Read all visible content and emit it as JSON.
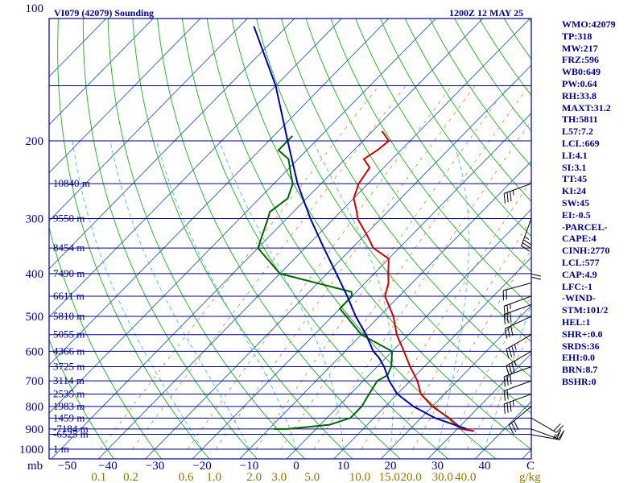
{
  "header": {
    "station_title": "VI079 (42079) Sounding",
    "time_title": "1200Z 12 MAY 25"
  },
  "colors": {
    "frame": "#000080",
    "isobar": "#000080",
    "isotherm": "#2a5db0",
    "dry_adiabat": "#22aa22",
    "moist_adiabat": "#5ab4e6",
    "mixing_ratio": "#b8a060",
    "temperature": "#cc0000",
    "dewpoint": "#006400",
    "parcel": "#0000aa",
    "wind_barb": "#000000",
    "unit_label": "#8B7500"
  },
  "chart_data": {
    "type": "line",
    "chart_kind": "skew-T log-P sounding",
    "grid": true,
    "pressure_axis": {
      "unit_label": "mb",
      "scale": "log",
      "range": [
        1000,
        100
      ],
      "ticks": [
        100,
        200,
        300,
        400,
        500,
        600,
        700,
        800,
        900,
        1000
      ],
      "extra_isobars": [
        150,
        250,
        350,
        450,
        550,
        650,
        750,
        850,
        925
      ]
    },
    "temperature_axis": {
      "unit_label": "C",
      "range": [
        -50,
        50
      ],
      "ticks": [
        -50,
        -40,
        -30,
        -20,
        -10,
        0,
        10,
        20,
        30,
        40
      ]
    },
    "mixing_ratio_axis": {
      "unit_label": "g/kg",
      "ticks": [
        "0.1",
        "0.2",
        "0.6",
        "1.0",
        "2.0",
        "3.0",
        "5.0",
        "10.0",
        "15.0",
        "20.0",
        "30.0",
        "40.0"
      ]
    },
    "height_labels": [
      {
        "pressure": 250,
        "label": "10840 m"
      },
      {
        "pressure": 300,
        "label": "9550 m"
      },
      {
        "pressure": 350,
        "label": "8454 m"
      },
      {
        "pressure": 400,
        "label": "7490 m"
      },
      {
        "pressure": 450,
        "label": "6611 m"
      },
      {
        "pressure": 500,
        "label": "5810 m"
      },
      {
        "pressure": 550,
        "label": "5055 m"
      },
      {
        "pressure": 600,
        "label": "4366 m"
      },
      {
        "pressure": 650,
        "label": "3725 m"
      },
      {
        "pressure": 700,
        "label": "3114 m"
      },
      {
        "pressure": 750,
        "label": "2535 m"
      },
      {
        "pressure": 800,
        "label": "1983 m"
      },
      {
        "pressure": 850,
        "label": "1459 m"
      },
      {
        "pressure": 900,
        "label": "-7184 m"
      },
      {
        "pressure": 925,
        "label": "-6525 m"
      },
      {
        "pressure": 1000,
        "label": "1 m"
      }
    ],
    "series": [
      {
        "key": "temperature",
        "points": [
          [
            910,
            34
          ],
          [
            900,
            31
          ],
          [
            850,
            26
          ],
          [
            800,
            20
          ],
          [
            750,
            15
          ],
          [
            700,
            11.5
          ],
          [
            650,
            7
          ],
          [
            600,
            2.5
          ],
          [
            550,
            -2.5
          ],
          [
            500,
            -7
          ],
          [
            450,
            -13
          ],
          [
            420,
            -15
          ],
          [
            400,
            -17
          ],
          [
            370,
            -20
          ],
          [
            350,
            -25.5
          ],
          [
            330,
            -29
          ],
          [
            300,
            -35
          ],
          [
            290,
            -36.5
          ],
          [
            270,
            -40
          ],
          [
            250,
            -42
          ],
          [
            230,
            -43
          ],
          [
            220,
            -46
          ],
          [
            210,
            -45
          ],
          [
            200,
            -44.5
          ],
          [
            190,
            -48
          ]
        ]
      },
      {
        "key": "dewpoint",
        "points": [
          [
            900,
            -9
          ],
          [
            900,
            -6
          ],
          [
            880,
            2
          ],
          [
            850,
            5
          ],
          [
            800,
            5
          ],
          [
            750,
            4
          ],
          [
            700,
            3
          ],
          [
            680,
            4
          ],
          [
            650,
            3
          ],
          [
            600,
            0
          ],
          [
            550,
            -10
          ],
          [
            500,
            -17
          ],
          [
            480,
            -20
          ],
          [
            450,
            -20
          ],
          [
            440,
            -21
          ],
          [
            400,
            -40
          ],
          [
            350,
            -50
          ],
          [
            300,
            -54
          ],
          [
            290,
            -55
          ],
          [
            270,
            -54
          ],
          [
            250,
            -56
          ],
          [
            240,
            -58
          ],
          [
            220,
            -62
          ],
          [
            210,
            -66
          ],
          [
            195,
            -66
          ]
        ]
      },
      {
        "key": "parcel",
        "points": [
          [
            900,
            32
          ],
          [
            850,
            23
          ],
          [
            800,
            16
          ],
          [
            750,
            10
          ],
          [
            700,
            5.5
          ],
          [
            650,
            1.5
          ],
          [
            620,
            -1.5
          ],
          [
            600,
            -4
          ],
          [
            550,
            -9
          ],
          [
            500,
            -15
          ],
          [
            450,
            -21
          ],
          [
            400,
            -28
          ],
          [
            350,
            -36
          ],
          [
            300,
            -45
          ],
          [
            250,
            -55
          ],
          [
            200,
            -66
          ],
          [
            150,
            -80
          ],
          [
            110,
            -97
          ]
        ]
      }
    ],
    "wind_barbs": [
      {
        "pressure": 927,
        "direction": 100,
        "speed": 25
      },
      {
        "pressure": 900,
        "direction": 110,
        "speed": 20
      },
      {
        "pressure": 850,
        "direction": 120,
        "speed": 20
      },
      {
        "pressure": 800,
        "direction": 230,
        "speed": 30
      },
      {
        "pressure": 750,
        "direction": 250,
        "speed": 35
      },
      {
        "pressure": 700,
        "direction": 250,
        "speed": 20
      },
      {
        "pressure": 650,
        "direction": 250,
        "speed": 30
      },
      {
        "pressure": 600,
        "direction": 240,
        "speed": 35
      },
      {
        "pressure": 550,
        "direction": 240,
        "speed": 35
      },
      {
        "pressure": 500,
        "direction": 245,
        "speed": 30
      },
      {
        "pressure": 470,
        "direction": 250,
        "speed": 30
      },
      {
        "pressure": 450,
        "direction": 250,
        "speed": 25
      },
      {
        "pressure": 420,
        "direction": 255,
        "speed": 20
      },
      {
        "pressure": 350,
        "direction": 180,
        "speed": 20
      },
      {
        "pressure": 300,
        "direction": 200,
        "speed": 35
      },
      {
        "pressure": 250,
        "direction": 250,
        "speed": 35
      }
    ]
  },
  "indices": [
    "WMO:42079",
    "TP:318",
    "MW:217",
    "FRZ:596",
    "WB0:649",
    "PW:0.64",
    "RH:33.8",
    "MAXT:31.2",
    "TH:5811",
    "L57:7.2",
    "LCL:669",
    "LI:4.1",
    "SI:3.1",
    "TT:45",
    "KI:24",
    "SW:45",
    "EI:-0.5",
    "-PARCEL-",
    "CAPE:4",
    "CINH:2770",
    "LCL:577",
    "CAP:4.9",
    "LFC:-1",
    "-WIND-",
    "STM:101/2",
    "HEL:1",
    "SHR+:0.0",
    "SRDS:36",
    "EHI:0.0",
    "BRN:8.7",
    "BSHR:0"
  ]
}
